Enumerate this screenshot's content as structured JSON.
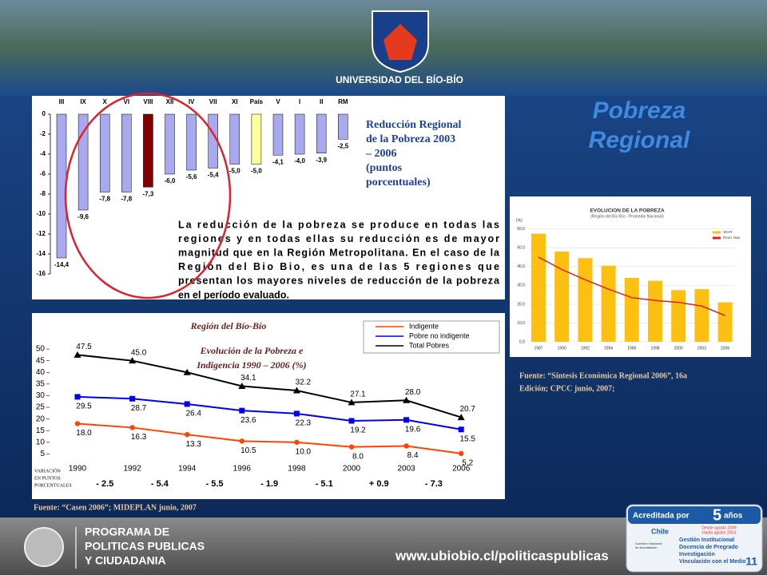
{
  "header": {
    "university": "UNIVERSIDAD DEL BÍO-BÍO"
  },
  "slide_title": [
    "Pobreza",
    "Regional"
  ],
  "chart_data": [
    {
      "type": "bar",
      "title": [
        "Reducción Regional",
        "de la Pobreza 2003",
        "– 2006",
        "(puntos",
        "porcentuales)"
      ],
      "note": [
        "La reducción de la pobreza se produce en todas las",
        "regiones y en todas ellas su reducción es de mayor",
        "magnitud que en la Región Metropolitana. En el caso de la",
        "Región del Bio Bio, es una de las 5 regiones que",
        "presentan los mayores niveles de reducción de la pobreza",
        "en el período evaluado."
      ],
      "categories": [
        "III",
        "IX",
        "X",
        "VI",
        "VIII",
        "XII",
        "IV",
        "VII",
        "XI",
        "País",
        "V",
        "I",
        "II",
        "RM"
      ],
      "values": [
        -14.4,
        -9.6,
        -7.8,
        -7.8,
        -7.3,
        -6.0,
        -5.6,
        -5.4,
        -5.0,
        -5.0,
        -4.1,
        -4.0,
        -3.9,
        -2.5
      ],
      "value_labels": [
        "-14,4",
        "-9,6",
        "-7,8",
        "-7,8",
        "-7,3",
        "-6,0",
        "-5,6",
        "-5,4",
        "-5,0",
        "-5,0",
        "-4,1",
        "-4,0",
        "-3,9",
        "-2,5"
      ],
      "colors": [
        "#a9a9f0",
        "#a9a9f0",
        "#a9a9f0",
        "#a9a9f0",
        "#800000",
        "#a9a9f0",
        "#a9a9f0",
        "#a9a9f0",
        "#a9a9f0",
        "#ffff99",
        "#a9a9f0",
        "#a9a9f0",
        "#a9a9f0",
        "#a9a9f0"
      ],
      "ylim": [
        -16,
        0
      ],
      "yticks": [
        0,
        -2,
        -4,
        -6,
        -8,
        -10,
        -12,
        -14,
        -16
      ]
    },
    {
      "type": "line",
      "subtitle": "Región del Bío-Bío",
      "title": [
        "Evolución de la Pobreza e",
        "Indigencia 1990 – 2006 (%)"
      ],
      "categories": [
        "1990",
        "1992",
        "1994",
        "1996",
        "1998",
        "2000",
        "2003",
        "2006"
      ],
      "series": [
        {
          "name": "Indigente",
          "color": "#ff4400",
          "marker": "circle",
          "values": [
            18.0,
            16.3,
            13.3,
            10.5,
            10.0,
            8.0,
            8.4,
            5.2
          ],
          "value_labels": [
            "18.0",
            "16.3",
            "13.3",
            "10.5",
            "10.0",
            "8.0",
            "8.4",
            "5.2"
          ]
        },
        {
          "name": "Pobre no indigente",
          "color": "#0000ee",
          "marker": "square",
          "values": [
            29.5,
            28.7,
            26.4,
            23.6,
            22.3,
            19.2,
            19.6,
            15.5
          ],
          "value_labels": [
            "29.5",
            "28.7",
            "26.4",
            "23.6",
            "22.3",
            "19.2",
            "19.6",
            "15.5"
          ]
        },
        {
          "name": "Total Pobres",
          "color": "#000000",
          "marker": "triangle",
          "values": [
            47.5,
            45.0,
            40,
            34.1,
            32.2,
            27.1,
            28.0,
            20.7
          ],
          "value_labels": [
            "47.5",
            "45.0",
            null,
            "34.1",
            "32.2",
            "27.1",
            "28.0",
            "20.7"
          ]
        }
      ],
      "ylim": [
        0,
        55
      ],
      "yticks": [
        5,
        10,
        15,
        20,
        25,
        30,
        35,
        40,
        45,
        50
      ],
      "variation_label": [
        "VARIACIÓN",
        "EN PUNTOS",
        "PORCENTUALES"
      ],
      "variation": [
        "- 2.5",
        "- 5.4",
        "- 5.5",
        "- 1.9",
        "- 5.1",
        "+ 0.9",
        "- 7.3"
      ]
    },
    {
      "type": "combo",
      "title": "EVOLUCION DE LA POBREZA",
      "subtitle": "(Región del Bío Bío - Promedio Nacional)",
      "y_label": "(%)",
      "categories": [
        "1987",
        "1990",
        "1992",
        "1994",
        "1996",
        "1998",
        "2000",
        "2003",
        "2006"
      ],
      "series": [
        {
          "name": "VIII-R",
          "color": "#fdc010",
          "kind": "bar",
          "values": [
            57.5,
            48,
            44.5,
            40.5,
            34,
            32.5,
            27.5,
            28,
            21
          ]
        },
        {
          "name": "Prom. Nac.",
          "color": "#e02020",
          "kind": "line",
          "values": [
            45,
            38.5,
            33,
            28,
            23.5,
            22,
            21,
            19,
            14
          ]
        }
      ],
      "ylim": [
        0,
        65
      ],
      "yticks": [
        {
          "value": 0,
          "label": "0,0"
        },
        {
          "value": 10,
          "label": "10,0"
        },
        {
          "value": 20,
          "label": "20,0"
        },
        {
          "value": 30,
          "label": "30,0"
        },
        {
          "value": 40,
          "label": "40,0"
        },
        {
          "value": 50,
          "label": "50,0"
        },
        {
          "value": 60,
          "label": "60,0"
        }
      ],
      "grid": true
    }
  ],
  "sources": [
    "Fuente: “Casen 2006”; MIDEPLAN junio, 2007",
    [
      "Fuente: “Síntesis Económica Regional 2006”, 16a",
      "Edición; CPCC junio, 2007;"
    ]
  ],
  "footer": {
    "program": [
      "PROGRAMA DE",
      "POLITICAS PUBLICAS",
      "Y CIUDADANIA"
    ],
    "url": "www.ubiobio.cl/politicaspublicas"
  },
  "badge": {
    "title": "Acreditada por",
    "years": "5",
    "unit": "años",
    "dates": [
      "Desde agosto 2009",
      "Hasta agosto 2014"
    ],
    "agency": "Chile",
    "agency_name": [
      "Comisión Nacional",
      "de Acreditación"
    ],
    "areas": [
      "Gestión Institucional",
      "Docencia de Pregrado",
      "Investigación",
      "Vinculación con el Medio"
    ]
  },
  "page_number": "11"
}
